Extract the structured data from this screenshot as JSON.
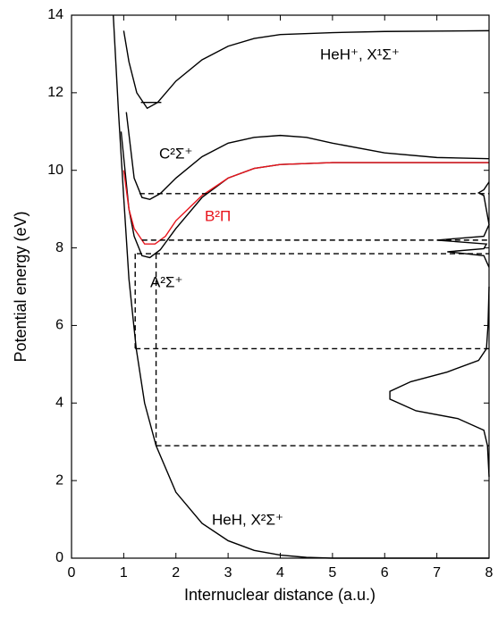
{
  "chart_data": {
    "type": "line",
    "xlabel": "Internuclear distance (a.u.)",
    "ylabel": "Potential energy (eV)",
    "xlim": [
      0,
      8
    ],
    "ylim": [
      0,
      14
    ],
    "xticks": [
      0,
      1,
      2,
      3,
      4,
      5,
      6,
      7,
      8
    ],
    "yticks": [
      0,
      2,
      4,
      6,
      8,
      10,
      12,
      14
    ],
    "grid": false,
    "annotations": [
      {
        "text": "HeH⁺, X¹Σ⁺",
        "color": "#000000"
      },
      {
        "text": "C²Σ⁺",
        "color": "#000000"
      },
      {
        "text": "B²Π",
        "color": "#e8141c"
      },
      {
        "text": "A²Σ⁺",
        "color": "#000000"
      },
      {
        "text": "HeH, X²Σ⁺",
        "color": "#000000"
      }
    ],
    "series": [
      {
        "color": "#000000",
        "style": "solid",
        "x": [
          0.8,
          0.9,
          1.0,
          1.1,
          1.24,
          1.4,
          1.62,
          2.0,
          2.5,
          3.0,
          3.5,
          4.0,
          4.5,
          5.0,
          6.0,
          8.0
        ],
        "values": [
          14,
          11.5,
          9.3,
          7.2,
          5.4,
          4.0,
          2.9,
          1.7,
          0.9,
          0.45,
          0.2,
          0.08,
          0.02,
          0,
          0,
          0
        ]
      },
      {
        "color": "#000000",
        "style": "solid",
        "x": [
          0.95,
          1.1,
          1.2,
          1.35,
          1.5,
          1.7,
          2.0,
          2.5,
          3.0,
          3.5,
          4.0,
          5.0,
          8.0
        ],
        "values": [
          11,
          9.0,
          8.3,
          7.8,
          7.75,
          7.95,
          8.5,
          9.3,
          9.8,
          10.05,
          10.15,
          10.2,
          10.2
        ]
      },
      {
        "color": "#e8141c",
        "style": "solid",
        "x": [
          1.0,
          1.1,
          1.2,
          1.4,
          1.6,
          1.8,
          2.0,
          2.5,
          3.0,
          3.5,
          4.0,
          5.0,
          8.0
        ],
        "values": [
          10.0,
          9.0,
          8.5,
          8.1,
          8.1,
          8.3,
          8.7,
          9.35,
          9.8,
          10.05,
          10.15,
          10.2,
          10.2
        ]
      },
      {
        "color": "#000000",
        "style": "solid",
        "x": [
          1.05,
          1.2,
          1.35,
          1.5,
          1.7,
          2.0,
          2.5,
          3.0,
          3.5,
          4.0,
          4.5,
          5.0,
          6.0,
          7.0,
          8.0
        ],
        "values": [
          11.5,
          9.8,
          9.3,
          9.25,
          9.4,
          9.8,
          10.35,
          10.7,
          10.85,
          10.9,
          10.85,
          10.7,
          10.45,
          10.33,
          10.3
        ]
      },
      {
        "color": "#000000",
        "style": "solid",
        "x": [
          1.0,
          1.1,
          1.25,
          1.45,
          1.65,
          2.0,
          2.5,
          3.0,
          3.5,
          4.0,
          5.0,
          6.0,
          8.0
        ],
        "values": [
          13.6,
          12.8,
          12.0,
          11.6,
          11.75,
          12.3,
          12.85,
          13.2,
          13.4,
          13.5,
          13.55,
          13.58,
          13.6
        ]
      },
      {
        "color": "#000000",
        "style": "solid",
        "x": [
          1.33,
          1.72
        ],
        "values": [
          11.75,
          11.75
        ]
      },
      {
        "color": "#000000",
        "style": "dashed",
        "x": [
          1.3,
          8.0
        ],
        "values": [
          9.4,
          9.4
        ]
      },
      {
        "color": "#000000",
        "style": "dashed",
        "x": [
          1.35,
          8.0
        ],
        "values": [
          8.2,
          8.2
        ]
      },
      {
        "color": "#000000",
        "style": "dashed",
        "x": [
          1.25,
          8.0
        ],
        "values": [
          7.85,
          7.85
        ]
      },
      {
        "color": "#000000",
        "style": "dashed",
        "x": [
          1.22,
          8.0
        ],
        "values": [
          5.4,
          5.4
        ]
      },
      {
        "color": "#000000",
        "style": "dashed",
        "x": [
          1.62,
          8.0
        ],
        "values": [
          2.9,
          2.9
        ]
      },
      {
        "color": "#000000",
        "style": "dashed",
        "x": [
          1.22,
          1.22
        ],
        "values": [
          7.85,
          5.4
        ]
      },
      {
        "color": "#000000",
        "style": "dashed",
        "x": [
          1.62,
          1.62
        ],
        "values": [
          7.85,
          2.9
        ]
      },
      {
        "color": "#000000",
        "style": "solid",
        "x": [
          8.0,
          7.97,
          7.9,
          7.4,
          6.6,
          6.1,
          6.1,
          6.5,
          7.2,
          7.8,
          7.95,
          7.98,
          8.0
        ],
        "values": [
          2.1,
          2.9,
          3.3,
          3.6,
          3.8,
          4.1,
          4.3,
          4.55,
          4.8,
          5.1,
          5.4,
          6.0,
          7.0
        ]
      },
      {
        "color": "#000000",
        "style": "solid",
        "x": [
          8.0,
          7.9,
          7.2,
          7.9,
          7.95,
          7.0,
          7.9,
          8.0,
          7.9,
          7.8,
          7.9,
          8.0
        ],
        "values": [
          7.5,
          7.8,
          7.9,
          7.98,
          8.1,
          8.2,
          8.3,
          8.6,
          9.35,
          9.42,
          9.5,
          9.7
        ]
      }
    ]
  }
}
